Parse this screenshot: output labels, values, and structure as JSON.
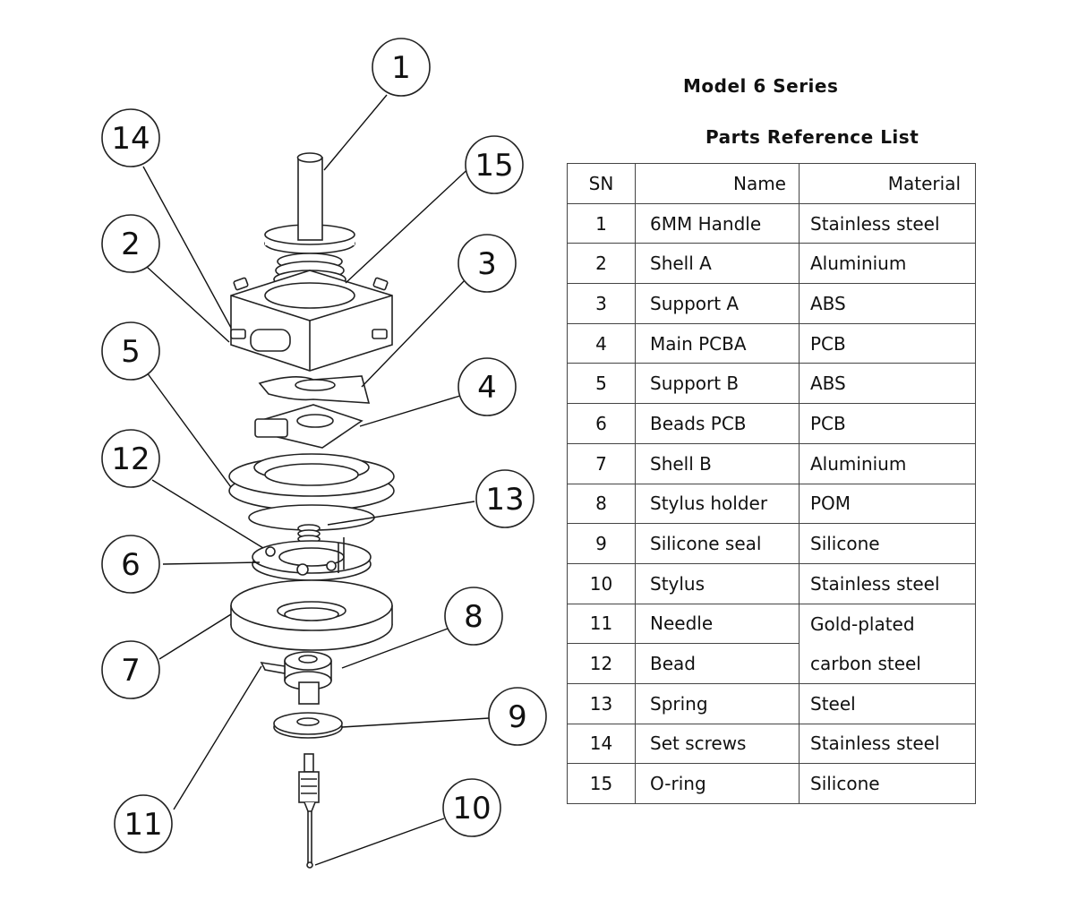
{
  "header": {
    "model_title": "Model 6 Series",
    "list_title": "Parts Reference List"
  },
  "table": {
    "columns": [
      "SN",
      "Name",
      "Material"
    ],
    "rows": [
      {
        "sn": "1",
        "name": "6MM Handle",
        "material": "Stainless steel"
      },
      {
        "sn": "2",
        "name": "Shell A",
        "material": "Aluminium"
      },
      {
        "sn": "3",
        "name": "Support A",
        "material": "ABS"
      },
      {
        "sn": "4",
        "name": "Main PCBA",
        "material": "PCB"
      },
      {
        "sn": "5",
        "name": "Support B",
        "material": "ABS"
      },
      {
        "sn": "6",
        "name": "Beads PCB",
        "material": "PCB"
      },
      {
        "sn": "7",
        "name": "Shell B",
        "material": "Aluminium"
      },
      {
        "sn": "8",
        "name": "Stylus holder",
        "material": "POM"
      },
      {
        "sn": "9",
        "name": "Silicone seal",
        "material": "Silicone"
      },
      {
        "sn": "10",
        "name": "Stylus",
        "material": "Stainless steel"
      },
      {
        "sn": "11",
        "name": "Needle",
        "material": "Gold-plated"
      },
      {
        "sn": "12",
        "name": "Bead",
        "material": "carbon steel"
      },
      {
        "sn": "13",
        "name": "Spring",
        "material": "Steel"
      },
      {
        "sn": "14",
        "name": "Set screws",
        "material": "Stainless steel"
      },
      {
        "sn": "15",
        "name": "O-ring",
        "material": "Silicone"
      }
    ]
  },
  "callouts": [
    "1",
    "2",
    "3",
    "4",
    "5",
    "6",
    "7",
    "8",
    "9",
    "10",
    "11",
    "12",
    "13",
    "14",
    "15"
  ]
}
